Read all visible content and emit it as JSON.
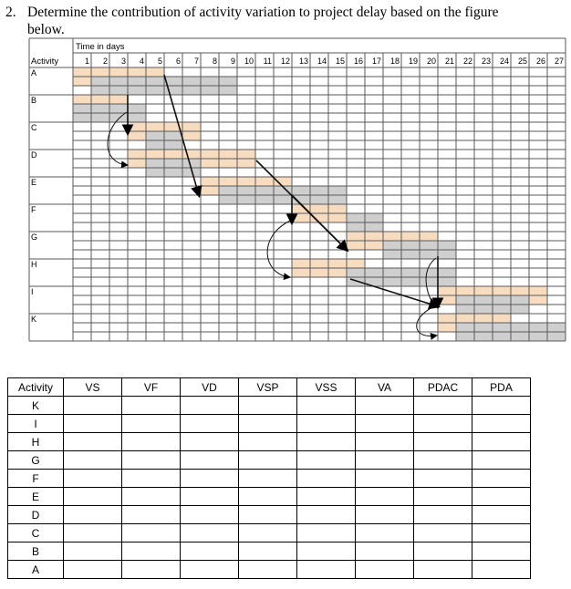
{
  "question": {
    "number": "2.",
    "line1": "Determine the contribution of activity variation to project delay based on the figure",
    "line2": "below."
  },
  "gantt": {
    "time_header": "Time in days",
    "activity_header": "Activity",
    "days": [
      "1",
      "2",
      "3",
      "4",
      "5",
      "6",
      "7",
      "8",
      "9",
      "10",
      "11",
      "12",
      "13",
      "14",
      "15",
      "16",
      "17",
      "18",
      "19",
      "20",
      "21",
      "22",
      "23",
      "24",
      "25",
      "26",
      "27"
    ],
    "rows": [
      {
        "label": "A",
        "planned": [
          1,
          5
        ],
        "actual": [
          2,
          9
        ]
      },
      {
        "label": "B",
        "planned": [
          1,
          3
        ],
        "actual": [
          1,
          4
        ]
      },
      {
        "label": "C",
        "planned": [
          4,
          7
        ],
        "actual": [
          5,
          6
        ]
      },
      {
        "label": "D",
        "planned": [
          4,
          10
        ],
        "actual": [
          5,
          7
        ]
      },
      {
        "label": "E",
        "planned": [
          8,
          12
        ],
        "actual": [
          9,
          15
        ]
      },
      {
        "label": "F",
        "planned": [
          13,
          15
        ],
        "actual": [
          16,
          17
        ]
      },
      {
        "label": "G",
        "planned": [
          16,
          20
        ],
        "actual": [
          18,
          21
        ]
      },
      {
        "label": "H",
        "planned": [
          13,
          16
        ],
        "actual": [
          16,
          21
        ]
      },
      {
        "label": "I",
        "planned": [
          21,
          26
        ],
        "actual": [
          22,
          25
        ]
      },
      {
        "label": "K",
        "planned": [
          21,
          24
        ],
        "actual": [
          22,
          27
        ]
      }
    ],
    "colors": {
      "planned": "#f8dcc0",
      "actual": "#cfcfcf",
      "grid": "#5a5a5a",
      "arrow": "#1a1a1a"
    }
  },
  "answer_table": {
    "headers": [
      "Activity",
      "VS",
      "VF",
      "VD",
      "VSP",
      "VSS",
      "VA",
      "PDAC",
      "PDA"
    ],
    "activities": [
      "K",
      "I",
      "H",
      "G",
      "F",
      "E",
      "D",
      "C",
      "B",
      "A"
    ]
  }
}
